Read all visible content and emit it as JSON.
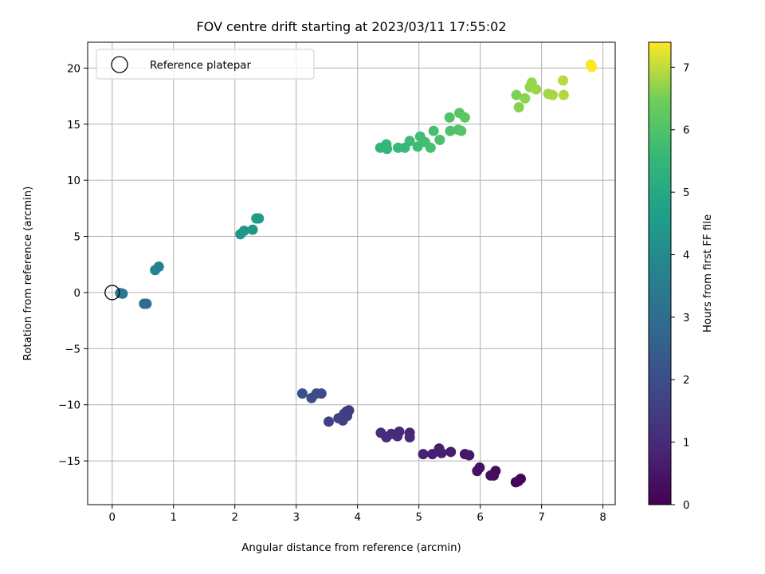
{
  "chart_data": {
    "type": "scatter",
    "title": "FOV centre drift starting at 2023/03/11 17:55:02",
    "xlabel": "Angular distance from reference (arcmin)",
    "ylabel": "Rotation from reference (arcmin)",
    "xlim": [
      -0.4,
      8.2
    ],
    "ylim": [
      -18.9,
      22.3
    ],
    "xticks": [
      0,
      1,
      2,
      3,
      4,
      5,
      6,
      7,
      8
    ],
    "yticks": [
      -15,
      -10,
      -5,
      0,
      5,
      10,
      15,
      20
    ],
    "grid": true,
    "legend": {
      "position": "top-left",
      "entries": [
        "Reference platepar"
      ]
    },
    "reference_point": {
      "x": 0,
      "y": 0
    },
    "colorbar": {
      "label": "Hours from first FF file",
      "range": [
        0,
        7.4
      ],
      "ticks": [
        0,
        1,
        2,
        3,
        4,
        5,
        6,
        7
      ],
      "colormap": "viridis"
    },
    "points": [
      {
        "x": 6.58,
        "y": -16.9,
        "t": 0.03
      },
      {
        "x": 6.62,
        "y": -16.8,
        "t": 0.06
      },
      {
        "x": 6.66,
        "y": -16.6,
        "t": 0.1
      },
      {
        "x": 6.62,
        "y": -16.8,
        "t": 0.13
      },
      {
        "x": 6.22,
        "y": -16.3,
        "t": 0.22
      },
      {
        "x": 6.25,
        "y": -15.9,
        "t": 0.26
      },
      {
        "x": 6.17,
        "y": -16.3,
        "t": 0.3
      },
      {
        "x": 5.95,
        "y": -15.9,
        "t": 0.38
      },
      {
        "x": 5.99,
        "y": -15.6,
        "t": 0.42
      },
      {
        "x": 5.75,
        "y": -14.4,
        "t": 0.52
      },
      {
        "x": 5.82,
        "y": -14.5,
        "t": 0.55
      },
      {
        "x": 5.52,
        "y": -14.2,
        "t": 0.63
      },
      {
        "x": 5.37,
        "y": -14.3,
        "t": 0.67
      },
      {
        "x": 5.33,
        "y": -13.9,
        "t": 0.7
      },
      {
        "x": 5.22,
        "y": -14.4,
        "t": 0.74
      },
      {
        "x": 5.07,
        "y": -14.4,
        "t": 0.78
      },
      {
        "x": 4.85,
        "y": -12.5,
        "t": 0.88
      },
      {
        "x": 4.85,
        "y": -12.9,
        "t": 0.92
      },
      {
        "x": 4.68,
        "y": -12.4,
        "t": 0.96
      },
      {
        "x": 4.65,
        "y": -12.8,
        "t": 1.0
      },
      {
        "x": 4.55,
        "y": -12.6,
        "t": 1.04
      },
      {
        "x": 4.47,
        "y": -12.9,
        "t": 1.07
      },
      {
        "x": 4.38,
        "y": -12.5,
        "t": 1.1
      },
      {
        "x": 3.86,
        "y": -10.5,
        "t": 1.48
      },
      {
        "x": 3.82,
        "y": -10.6,
        "t": 1.5
      },
      {
        "x": 3.78,
        "y": -10.8,
        "t": 1.53
      },
      {
        "x": 3.83,
        "y": -11.0,
        "t": 1.56
      },
      {
        "x": 3.76,
        "y": -11.4,
        "t": 1.59
      },
      {
        "x": 3.69,
        "y": -11.2,
        "t": 1.62
      },
      {
        "x": 3.53,
        "y": -11.5,
        "t": 1.66
      },
      {
        "x": 3.41,
        "y": -9.0,
        "t": 1.9
      },
      {
        "x": 3.33,
        "y": -9.0,
        "t": 1.94
      },
      {
        "x": 3.25,
        "y": -9.4,
        "t": 1.98
      },
      {
        "x": 3.1,
        "y": -9.0,
        "t": 2.02
      },
      {
        "x": 0.52,
        "y": -1.0,
        "t": 2.92
      },
      {
        "x": 0.56,
        "y": -1.0,
        "t": 2.95
      },
      {
        "x": 0.13,
        "y": -0.05,
        "t": 3.28
      },
      {
        "x": 0.17,
        "y": -0.1,
        "t": 3.31
      },
      {
        "x": 0.7,
        "y": 2.0,
        "t": 3.62
      },
      {
        "x": 0.76,
        "y": 2.3,
        "t": 3.66
      },
      {
        "x": 2.09,
        "y": 5.2,
        "t": 4.32
      },
      {
        "x": 2.15,
        "y": 5.5,
        "t": 4.35
      },
      {
        "x": 2.29,
        "y": 5.6,
        "t": 4.38
      },
      {
        "x": 2.35,
        "y": 6.6,
        "t": 4.55
      },
      {
        "x": 2.39,
        "y": 6.6,
        "t": 4.58
      },
      {
        "x": 4.37,
        "y": 12.9,
        "t": 5.48
      },
      {
        "x": 4.47,
        "y": 13.2,
        "t": 5.52
      },
      {
        "x": 4.48,
        "y": 12.8,
        "t": 5.55
      },
      {
        "x": 4.66,
        "y": 12.9,
        "t": 5.58
      },
      {
        "x": 4.77,
        "y": 12.9,
        "t": 5.62
      },
      {
        "x": 4.85,
        "y": 13.5,
        "t": 5.66
      },
      {
        "x": 4.98,
        "y": 13.0,
        "t": 5.7
      },
      {
        "x": 5.02,
        "y": 13.9,
        "t": 5.74
      },
      {
        "x": 5.1,
        "y": 13.4,
        "t": 5.78
      },
      {
        "x": 5.19,
        "y": 12.9,
        "t": 5.82
      },
      {
        "x": 5.24,
        "y": 14.4,
        "t": 5.86
      },
      {
        "x": 5.34,
        "y": 13.6,
        "t": 5.9
      },
      {
        "x": 5.51,
        "y": 14.4,
        "t": 5.96
      },
      {
        "x": 5.5,
        "y": 15.6,
        "t": 6.0
      },
      {
        "x": 5.64,
        "y": 14.5,
        "t": 6.04
      },
      {
        "x": 5.69,
        "y": 14.4,
        "t": 6.08
      },
      {
        "x": 5.66,
        "y": 16.0,
        "t": 6.12
      },
      {
        "x": 5.75,
        "y": 15.6,
        "t": 6.16
      },
      {
        "x": 6.59,
        "y": 17.6,
        "t": 6.58
      },
      {
        "x": 6.63,
        "y": 16.5,
        "t": 6.62
      },
      {
        "x": 6.73,
        "y": 17.3,
        "t": 6.66
      },
      {
        "x": 6.81,
        "y": 18.3,
        "t": 6.7
      },
      {
        "x": 6.84,
        "y": 18.7,
        "t": 6.73
      },
      {
        "x": 6.91,
        "y": 18.1,
        "t": 6.76
      },
      {
        "x": 7.11,
        "y": 17.7,
        "t": 6.8
      },
      {
        "x": 7.18,
        "y": 17.6,
        "t": 6.84
      },
      {
        "x": 7.36,
        "y": 17.6,
        "t": 6.9
      },
      {
        "x": 7.35,
        "y": 18.9,
        "t": 6.94
      },
      {
        "x": 7.8,
        "y": 20.3,
        "t": 7.38
      },
      {
        "x": 7.82,
        "y": 20.1,
        "t": 7.4
      }
    ]
  }
}
